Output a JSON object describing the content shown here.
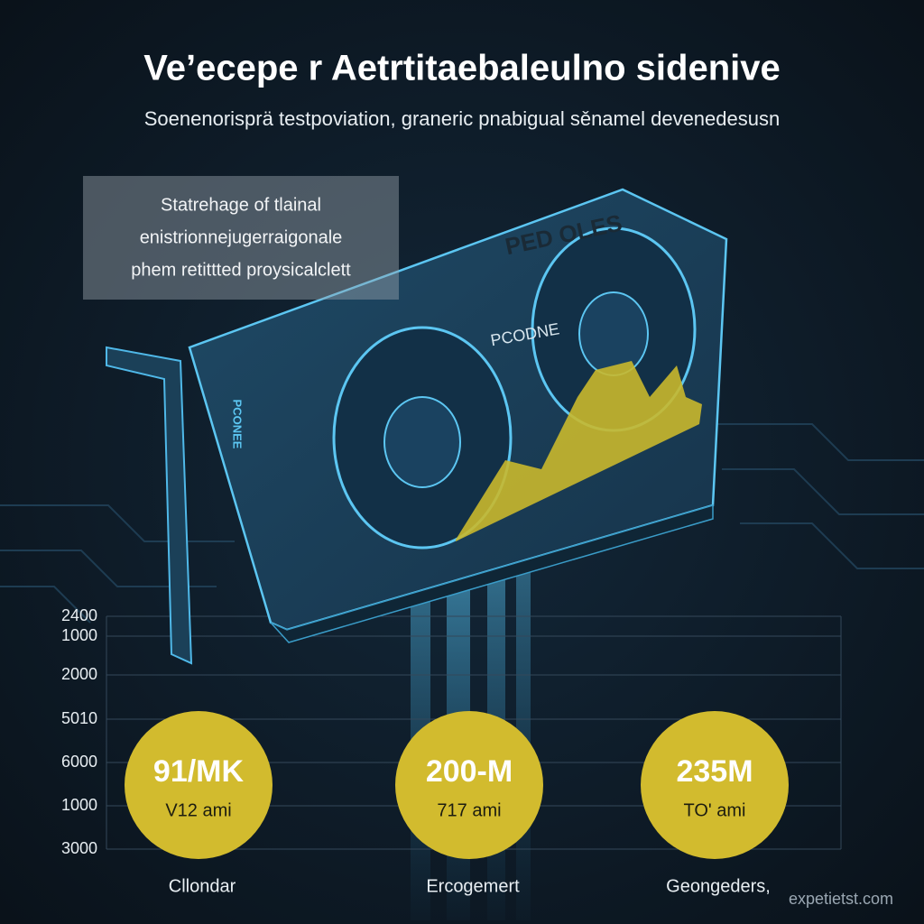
{
  "header": {
    "title": "Ve’ecepe r Aetrtitaebaleulno sidenive",
    "subtitle": "Soenenorisprä testpoviation, graneric pnabigual sěnamel devenedesusn"
  },
  "note": {
    "lines": [
      "Statrehage of tlainal",
      "enistrionnejugerraigonale",
      "phem retittted proysicalclett"
    ]
  },
  "card": {
    "brand": "PED OLES",
    "badge": "PCODNE",
    "side_text": "PCONEE"
  },
  "axis_labels": [
    "2400",
    "1000",
    "2000",
    "5010",
    "6000",
    "1000",
    "3000"
  ],
  "stats": [
    {
      "value": "91/MK",
      "sub": "V12 ami",
      "label": "Cllondar"
    },
    {
      "value": "200-M",
      "sub": "717 ami",
      "label": "Ercogemert"
    },
    {
      "value": "235M",
      "sub": "TO' ami",
      "label": "Geongeders,"
    }
  ],
  "watermark": "expetietst.com"
}
